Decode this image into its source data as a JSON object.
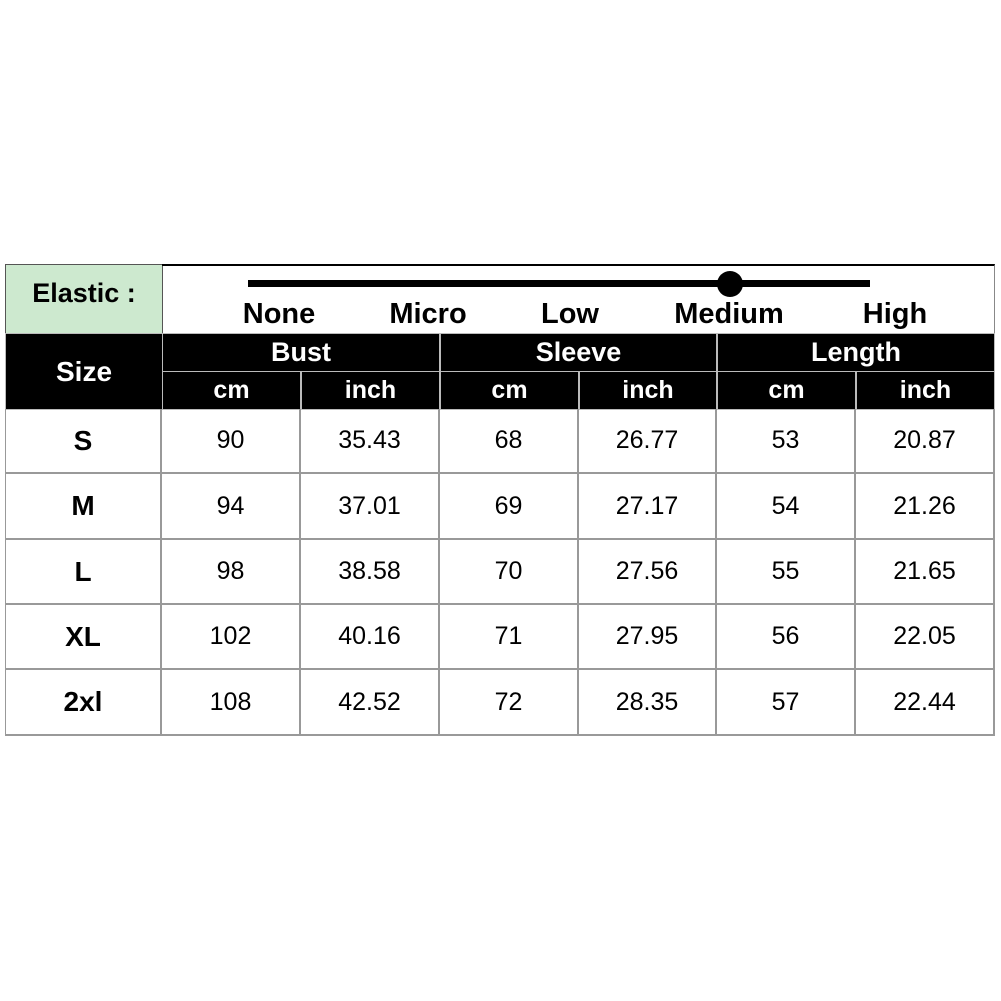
{
  "elastic": {
    "label": "Elastic :",
    "levels": [
      "None",
      "Micro",
      "Low",
      "Medium",
      "High"
    ],
    "selected": "Medium"
  },
  "header": {
    "size": "Size",
    "groups": [
      "Bust",
      "Sleeve",
      "Length"
    ],
    "units": [
      "cm",
      "inch",
      "cm",
      "inch",
      "cm",
      "inch"
    ]
  },
  "rows": [
    {
      "size": "S",
      "values": [
        "90",
        "35.43",
        "68",
        "26.77",
        "53",
        "20.87"
      ]
    },
    {
      "size": "M",
      "values": [
        "94",
        "37.01",
        "69",
        "27.17",
        "54",
        "21.26"
      ]
    },
    {
      "size": "L",
      "values": [
        "98",
        "38.58",
        "70",
        "27.56",
        "55",
        "21.65"
      ]
    },
    {
      "size": "XL",
      "values": [
        "102",
        "40.16",
        "71",
        "27.95",
        "56",
        "22.05"
      ]
    },
    {
      "size": "2xl",
      "values": [
        "108",
        "42.52",
        "72",
        "28.35",
        "57",
        "22.44"
      ]
    }
  ],
  "colors": {
    "elastic_label_bg": "#cde9cf",
    "header_bg": "#000000"
  }
}
